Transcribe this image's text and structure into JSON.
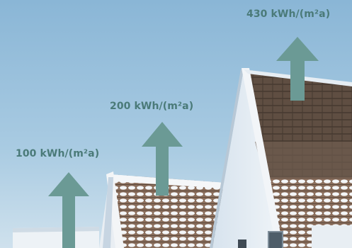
{
  "labels": {
    "low": "100 kWh/(m²a)",
    "medium": "200 kWh/(m²a)",
    "high": "430 kWh/(m²a)"
  },
  "colors": {
    "label_text": "#4a7a78",
    "arrow": "#6b9a95",
    "sky_top": "#9cc3de",
    "sky_bottom": "#cfe0ec"
  },
  "icons": {
    "arrow_low": "up-arrow-icon",
    "arrow_medium": "up-arrow-icon",
    "arrow_high": "up-arrow-icon"
  }
}
